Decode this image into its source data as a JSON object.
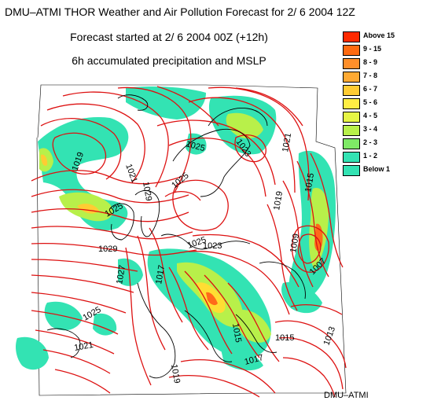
{
  "title": "DMU–ATMI THOR Weather and Air Pollution Forecast for  2/ 6 2004  12Z",
  "subtitle1": "Forecast started at  2/ 6 2004  00Z (+12h)",
  "subtitle2": "6h accumulated precipitation and MSLP",
  "credit": "DMU–ATMI",
  "colors": {
    "isobar": "#dd1111",
    "coast": "#000000",
    "precip_light": "#33e3b3",
    "precip_medium": "#b8f04a",
    "precip_heavy": "#ffdd33",
    "precip_max": "#ff6a1a"
  },
  "legend": [
    {
      "label": "Above   15",
      "color": "#ff2a00"
    },
    {
      "label": "9  -  15",
      "color": "#ff6a10"
    },
    {
      "label": "8  -   9",
      "color": "#ff8f2a"
    },
    {
      "label": "7  -   8",
      "color": "#ffaa33"
    },
    {
      "label": "6  -   7",
      "color": "#ffcc33"
    },
    {
      "label": "5  -   6",
      "color": "#ffee44"
    },
    {
      "label": "4  -   5",
      "color": "#e6f544"
    },
    {
      "label": "3  -   4",
      "color": "#b8f04a"
    },
    {
      "label": "2  -   3",
      "color": "#7eea66"
    },
    {
      "label": "1  -   2",
      "color": "#33e3b3"
    },
    {
      "label": "Below    1",
      "color": "#33e3b3"
    }
  ],
  "isobar_labels": [
    "1023",
    "1025",
    "1019",
    "1021",
    "1029",
    "1025",
    "1025",
    "1021",
    "1019",
    "1015",
    "1025",
    "1029",
    "1023",
    "1009",
    "1027",
    "1017",
    "1007",
    "1025",
    "1015",
    "1015",
    "1013",
    "1021",
    "1019",
    "1017"
  ]
}
